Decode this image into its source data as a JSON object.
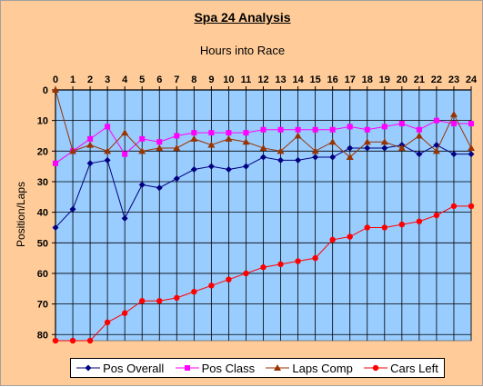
{
  "chart_data": {
    "type": "line",
    "title": "Spa 24 Analysis",
    "xlabel": "Hours into Race",
    "ylabel": "Position/Laps",
    "x": [
      0,
      1,
      2,
      3,
      4,
      5,
      6,
      7,
      8,
      9,
      10,
      11,
      12,
      13,
      14,
      15,
      16,
      17,
      18,
      19,
      20,
      21,
      22,
      23,
      24
    ],
    "x_ticks": [
      0,
      1,
      2,
      3,
      4,
      5,
      6,
      7,
      8,
      9,
      10,
      11,
      12,
      13,
      14,
      15,
      16,
      17,
      18,
      19,
      20,
      21,
      22,
      23,
      24
    ],
    "y_ticks": [
      0,
      10,
      20,
      30,
      40,
      50,
      60,
      70,
      80
    ],
    "xlim": [
      0,
      24
    ],
    "ylim": [
      0,
      82
    ],
    "y_inverted": true,
    "x_axis_position": "top",
    "grid": true,
    "legend_position": "bottom",
    "series": [
      {
        "name": "Pos Overall",
        "color": "#000080",
        "marker": "diamond",
        "values": [
          45,
          39,
          24,
          23,
          42,
          31,
          32,
          29,
          26,
          25,
          26,
          25,
          22,
          23,
          23,
          22,
          22,
          19,
          19,
          19,
          18,
          21,
          18,
          21,
          21
        ]
      },
      {
        "name": "Pos Class",
        "color": "#ff00ff",
        "marker": "square",
        "values": [
          24,
          20,
          16,
          12,
          21,
          16,
          17,
          15,
          14,
          14,
          14,
          14,
          13,
          13,
          13,
          13,
          13,
          12,
          13,
          12,
          11,
          13,
          10,
          11,
          11
        ]
      },
      {
        "name": "Laps Comp",
        "color": "#993300",
        "marker": "triangle",
        "values": [
          0,
          20,
          18,
          20,
          14,
          20,
          19,
          19,
          16,
          18,
          16,
          17,
          19,
          20,
          15,
          20,
          17,
          22,
          17,
          17,
          19,
          15,
          20,
          8,
          19
        ]
      },
      {
        "name": "Cars Left",
        "color": "#ff0000",
        "marker": "circle",
        "values": [
          82,
          82,
          82,
          76,
          73,
          69,
          69,
          68,
          66,
          64,
          62,
          60,
          58,
          57,
          56,
          55,
          49,
          48,
          45,
          45,
          44,
          43,
          41,
          38,
          38
        ]
      }
    ]
  }
}
